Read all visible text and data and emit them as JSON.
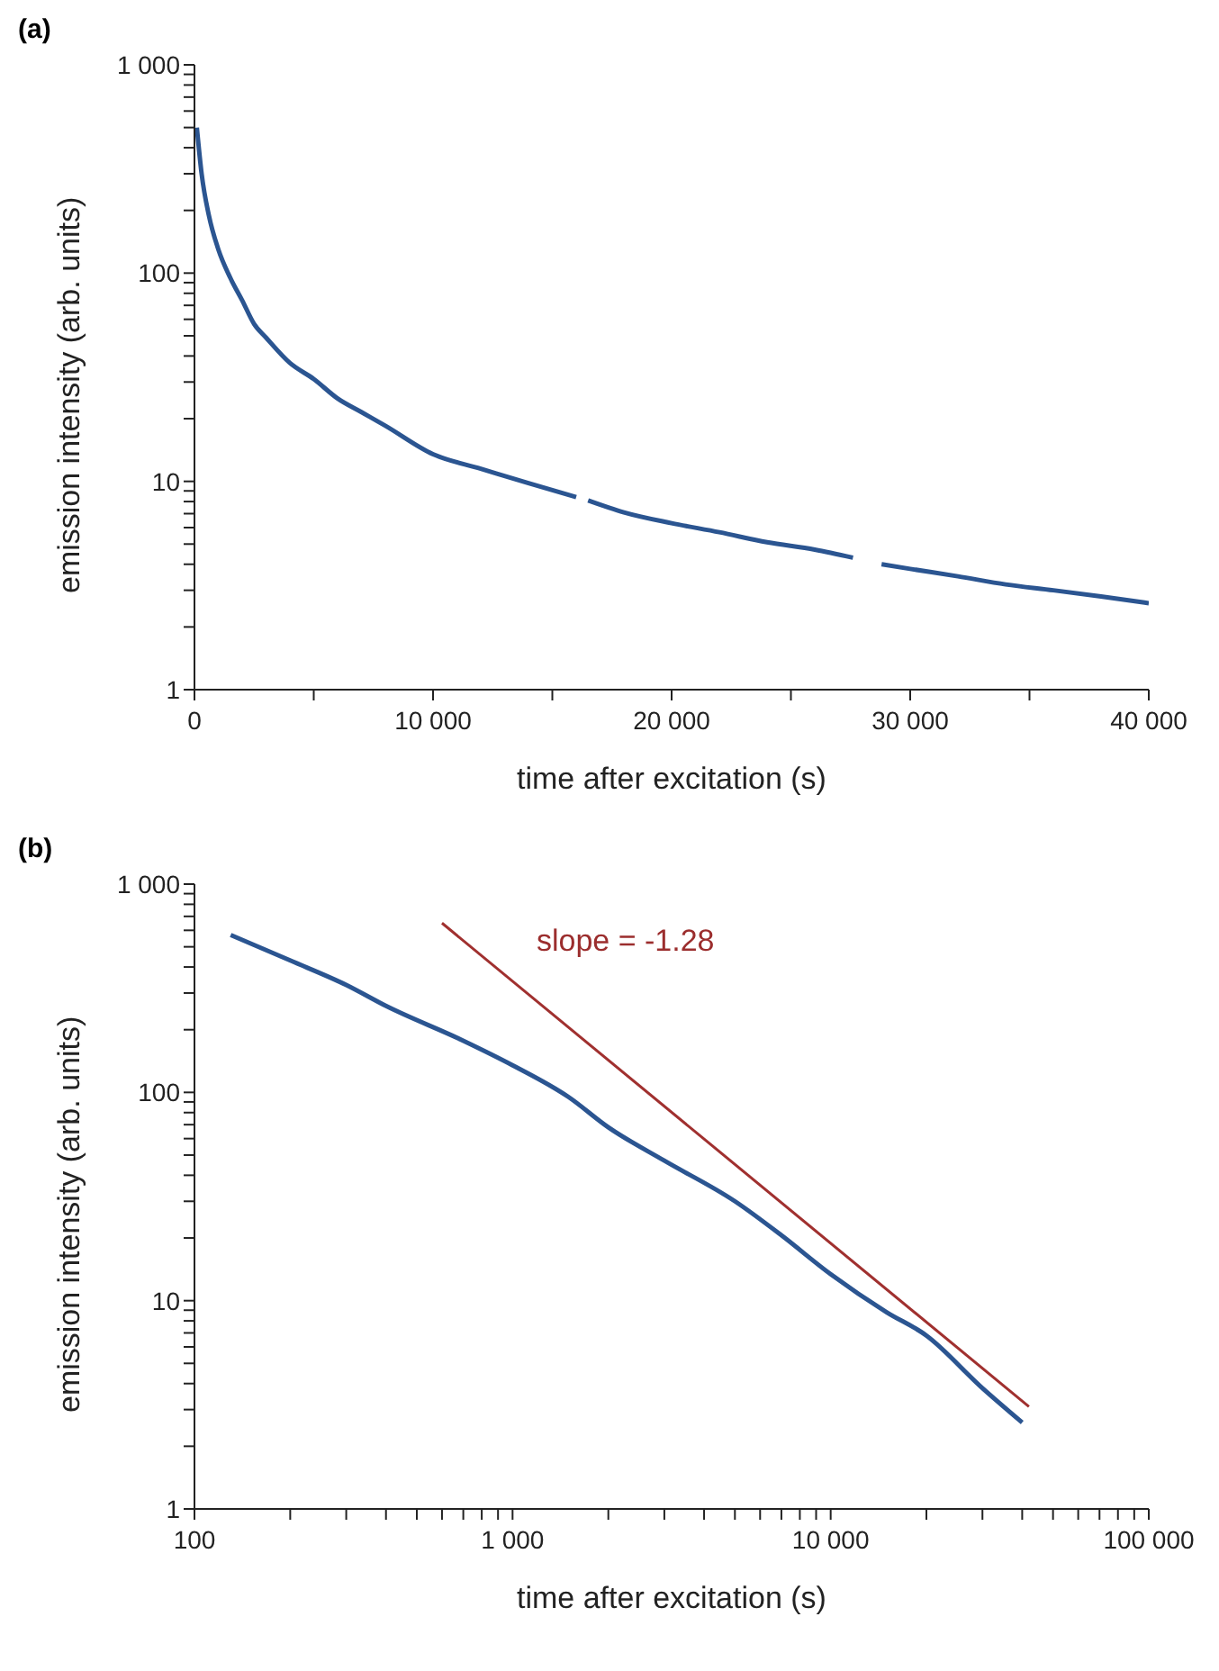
{
  "chart_data": [
    {
      "type": "line",
      "title": "(a)",
      "xlabel": "time after excitation (s)",
      "ylabel": "emission intensity (arb. units)",
      "log": "y",
      "marker": "none",
      "line_style": "solid",
      "xlim": [
        0,
        40000
      ],
      "xticks": [
        0,
        {
          "value": 5000,
          "label": null
        },
        {
          "value": 10000,
          "label": "10 000"
        },
        {
          "value": 15000,
          "label": null
        },
        {
          "value": 20000,
          "label": "20 000"
        },
        {
          "value": 25000,
          "label": null
        },
        {
          "value": 30000,
          "label": "30 000"
        },
        {
          "value": 35000,
          "label": null
        },
        {
          "value": 40000,
          "label": "40 000"
        }
      ],
      "ylim": [
        1,
        1000
      ],
      "yticks": [
        1,
        {
          "value": 2,
          "label": null
        },
        {
          "value": 3,
          "label": null
        },
        {
          "value": 4,
          "label": null
        },
        {
          "value": 5,
          "label": null
        },
        {
          "value": 6,
          "label": null
        },
        {
          "value": 7,
          "label": null
        },
        {
          "value": 8,
          "label": null
        },
        {
          "value": 9,
          "label": null
        },
        10,
        {
          "value": 20,
          "label": null
        },
        {
          "value": 30,
          "label": null
        },
        {
          "value": 40,
          "label": null
        },
        {
          "value": 50,
          "label": null
        },
        {
          "value": 60,
          "label": null
        },
        {
          "value": 70,
          "label": null
        },
        {
          "value": 80,
          "label": null
        },
        {
          "value": 90,
          "label": null
        },
        100,
        {
          "value": 200,
          "label": null
        },
        {
          "value": 300,
          "label": null
        },
        {
          "value": 400,
          "label": null
        },
        {
          "value": 500,
          "label": null
        },
        {
          "value": 600,
          "label": null
        },
        {
          "value": 700,
          "label": null
        },
        {
          "value": 800,
          "label": null
        },
        {
          "value": 900,
          "label": null
        },
        {
          "value": 1000,
          "label": "1 000"
        }
      ],
      "series": [
        {
          "color": "#2b5591",
          "x": [
            100,
            300,
            600,
            1000,
            1500,
            2000,
            2500,
            3000,
            4000,
            5000,
            6000,
            7000,
            8000,
            10000,
            12000,
            14000,
            16000,
            16300,
            16500,
            18000,
            20000,
            22000,
            24000,
            26000,
            27600,
            28200,
            28800,
            30000,
            32000,
            34000,
            36000,
            38000,
            40000
          ],
          "values": [
            500,
            300,
            190,
            130,
            95,
            74,
            57,
            49,
            37,
            31,
            25,
            21.5,
            18.5,
            13.5,
            11.5,
            9.8,
            8.4,
            null,
            8.1,
            7.1,
            6.3,
            5.7,
            5.1,
            4.7,
            4.3,
            null,
            4.0,
            3.8,
            3.5,
            3.2,
            3.0,
            2.8,
            2.6
          ]
        }
      ]
    },
    {
      "type": "line",
      "title": "(b)",
      "xlabel": "time after excitation (s)",
      "ylabel": "emission intensity (arb. units)",
      "log": "xy",
      "marker": "none",
      "line_style": "solid",
      "xlim": [
        100,
        100000
      ],
      "xticks": [
        100,
        {
          "value": 200,
          "label": null
        },
        {
          "value": 300,
          "label": null
        },
        {
          "value": 400,
          "label": null
        },
        {
          "value": 500,
          "label": null
        },
        {
          "value": 600,
          "label": null
        },
        {
          "value": 700,
          "label": null
        },
        {
          "value": 800,
          "label": null
        },
        {
          "value": 900,
          "label": null
        },
        {
          "value": 1000,
          "label": "1 000"
        },
        {
          "value": 2000,
          "label": null
        },
        {
          "value": 3000,
          "label": null
        },
        {
          "value": 4000,
          "label": null
        },
        {
          "value": 5000,
          "label": null
        },
        {
          "value": 6000,
          "label": null
        },
        {
          "value": 7000,
          "label": null
        },
        {
          "value": 8000,
          "label": null
        },
        {
          "value": 9000,
          "label": null
        },
        {
          "value": 10000,
          "label": "10 000"
        },
        {
          "value": 20000,
          "label": null
        },
        {
          "value": 30000,
          "label": null
        },
        {
          "value": 40000,
          "label": null
        },
        {
          "value": 50000,
          "label": null
        },
        {
          "value": 60000,
          "label": null
        },
        {
          "value": 70000,
          "label": null
        },
        {
          "value": 80000,
          "label": null
        },
        {
          "value": 90000,
          "label": null
        },
        {
          "value": 100000,
          "label": "100 000"
        }
      ],
      "ylim": [
        1,
        1000
      ],
      "yticks": [
        1,
        {
          "value": 2,
          "label": null
        },
        {
          "value": 3,
          "label": null
        },
        {
          "value": 4,
          "label": null
        },
        {
          "value": 5,
          "label": null
        },
        {
          "value": 6,
          "label": null
        },
        {
          "value": 7,
          "label": null
        },
        {
          "value": 8,
          "label": null
        },
        {
          "value": 9,
          "label": null
        },
        10,
        {
          "value": 20,
          "label": null
        },
        {
          "value": 30,
          "label": null
        },
        {
          "value": 40,
          "label": null
        },
        {
          "value": 50,
          "label": null
        },
        {
          "value": 60,
          "label": null
        },
        {
          "value": 70,
          "label": null
        },
        {
          "value": 80,
          "label": null
        },
        {
          "value": 90,
          "label": null
        },
        100,
        {
          "value": 200,
          "label": null
        },
        {
          "value": 300,
          "label": null
        },
        {
          "value": 400,
          "label": null
        },
        {
          "value": 500,
          "label": null
        },
        {
          "value": 600,
          "label": null
        },
        {
          "value": 700,
          "label": null
        },
        {
          "value": 800,
          "label": null
        },
        {
          "value": 900,
          "label": null
        },
        {
          "value": 1000,
          "label": "1 000"
        }
      ],
      "annotations": [
        "slope = -1.28"
      ],
      "series": [
        {
          "color": "#2b5591",
          "x": [
            130,
            200,
            300,
            400,
            700,
            1000,
            1500,
            2000,
            3000,
            5000,
            7000,
            10000,
            15000,
            20000,
            30000,
            40000
          ],
          "values": [
            570,
            430,
            328,
            260,
            177,
            135,
            95,
            68,
            47,
            30,
            20.6,
            13.4,
            8.8,
            6.8,
            3.8,
            2.6
          ]
        },
        {
          "type": "line",
          "color": "#a0302f",
          "x": [
            600,
            42000
          ],
          "values": [
            650,
            3.1
          ]
        }
      ]
    }
  ]
}
